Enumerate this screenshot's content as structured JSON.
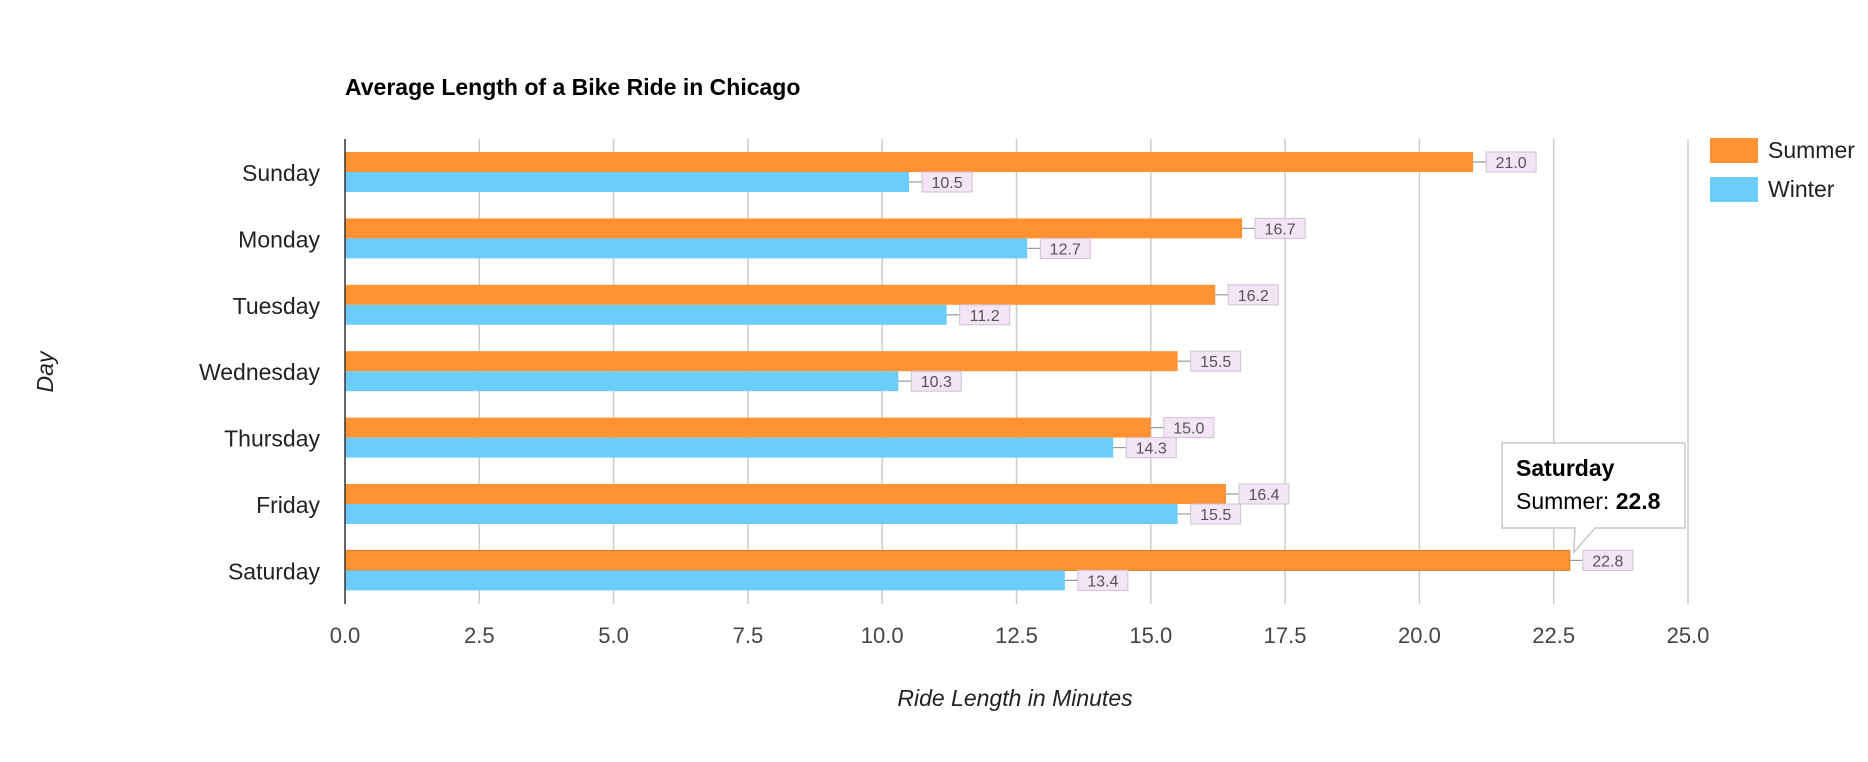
{
  "chart_data": {
    "type": "bar",
    "orientation": "horizontal",
    "title": "Average Length of a Bike Ride in Chicago",
    "xlabel": "Ride Length in Minutes",
    "ylabel": "Day",
    "categories": [
      "Sunday",
      "Monday",
      "Tuesday",
      "Wednesday",
      "Thursday",
      "Friday",
      "Saturday"
    ],
    "series": [
      {
        "name": "Summer",
        "color": "#ff9233",
        "values": [
          21.0,
          16.7,
          16.2,
          15.5,
          15.0,
          16.4,
          22.8
        ]
      },
      {
        "name": "Winter",
        "color": "#6dcdfa",
        "values": [
          10.5,
          12.7,
          11.2,
          10.3,
          14.3,
          15.5,
          13.4
        ]
      }
    ],
    "xlim": [
      0,
      25
    ],
    "xticks": [
      "0.0",
      "2.5",
      "5.0",
      "7.5",
      "10.0",
      "12.5",
      "15.0",
      "17.5",
      "20.0",
      "22.5",
      "25.0"
    ],
    "grid": true,
    "legend_position": "top-right",
    "data_labels": true,
    "tooltip": {
      "category": "Saturday",
      "series": "Summer",
      "label": "Summer: ",
      "value": "22.8"
    }
  }
}
